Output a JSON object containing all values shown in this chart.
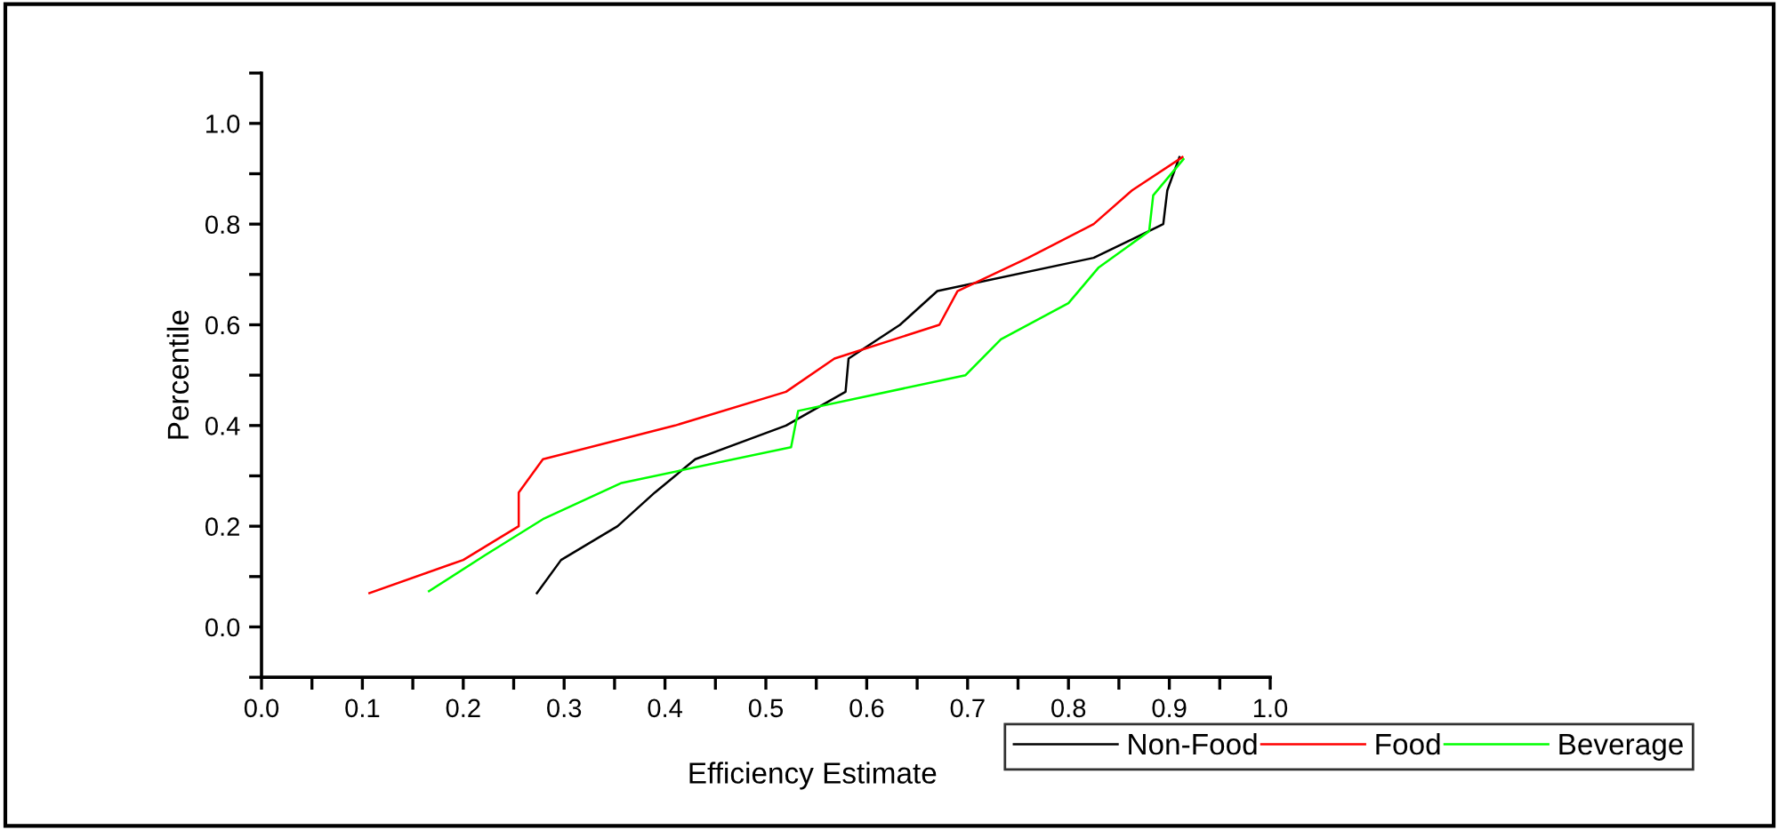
{
  "chart_data": {
    "type": "line",
    "xlabel": "Efficiency Estimate",
    "ylabel": "Percentile",
    "xlim": [
      0,
      1
    ],
    "ylim": [
      -0.1,
      1.1
    ],
    "xticks": [
      {
        "value": 0,
        "label": "0.0"
      },
      {
        "value": 0.05,
        "label": null
      },
      {
        "value": 0.1,
        "label": "0.1"
      },
      {
        "value": 0.15,
        "label": null
      },
      {
        "value": 0.2,
        "label": "0.2"
      },
      {
        "value": 0.25,
        "label": null
      },
      {
        "value": 0.3,
        "label": "0.3"
      },
      {
        "value": 0.35,
        "label": null
      },
      {
        "value": 0.4,
        "label": "0.4"
      },
      {
        "value": 0.45,
        "label": null
      },
      {
        "value": 0.5,
        "label": "0.5"
      },
      {
        "value": 0.55,
        "label": null
      },
      {
        "value": 0.6,
        "label": "0.6"
      },
      {
        "value": 0.65,
        "label": null
      },
      {
        "value": 0.7,
        "label": "0.7"
      },
      {
        "value": 0.75,
        "label": null
      },
      {
        "value": 0.8,
        "label": "0.8"
      },
      {
        "value": 0.85,
        "label": null
      },
      {
        "value": 0.9,
        "label": "0.9"
      },
      {
        "value": 0.95,
        "label": null
      },
      {
        "value": 1,
        "label": "1.0"
      }
    ],
    "yticks": [
      {
        "value": -0.1,
        "label": null
      },
      {
        "value": 0,
        "label": "0.0"
      },
      {
        "value": 0.1,
        "label": null
      },
      {
        "value": 0.2,
        "label": "0.2"
      },
      {
        "value": 0.3,
        "label": null
      },
      {
        "value": 0.4,
        "label": "0.4"
      },
      {
        "value": 0.5,
        "label": null
      },
      {
        "value": 0.6,
        "label": "0.6"
      },
      {
        "value": 0.7,
        "label": null
      },
      {
        "value": 0.8,
        "label": "0.8"
      },
      {
        "value": 0.9,
        "label": null
      },
      {
        "value": 1,
        "label": "1.0"
      },
      {
        "value": 1.1,
        "label": null
      }
    ],
    "grid": false,
    "legend": "bottom",
    "marker": "none",
    "line_style": "solid",
    "series": [
      {
        "name": "Non-Food",
        "color": "#000000",
        "x": [
          0.273,
          0.297,
          0.353,
          0.39,
          0.43,
          0.52,
          0.579,
          0.582,
          0.633,
          0.67,
          0.825,
          0.894,
          0.898,
          0.91
        ],
        "values": [
          0.067,
          0.133,
          0.2,
          0.267,
          0.333,
          0.4,
          0.467,
          0.533,
          0.6,
          0.667,
          0.733,
          0.8,
          0.867,
          0.933
        ]
      },
      {
        "name": "Food",
        "color": "#ff0000",
        "x": [
          0.107,
          0.2,
          0.255,
          0.255,
          0.279,
          0.41,
          0.52,
          0.568,
          0.672,
          0.69,
          0.76,
          0.825,
          0.863,
          0.913
        ],
        "values": [
          0.067,
          0.133,
          0.2,
          0.267,
          0.333,
          0.4,
          0.467,
          0.533,
          0.6,
          0.667,
          0.733,
          0.8,
          0.867,
          0.933
        ]
      },
      {
        "name": "Beverage",
        "color": "#00ff00",
        "x": [
          0.166,
          0.222,
          0.279,
          0.357,
          0.525,
          0.532,
          0.698,
          0.733,
          0.8,
          0.83,
          0.88,
          0.884,
          0.914
        ],
        "values": [
          0.071,
          0.143,
          0.214,
          0.286,
          0.357,
          0.429,
          0.5,
          0.571,
          0.643,
          0.714,
          0.786,
          0.857,
          0.929
        ]
      }
    ]
  }
}
